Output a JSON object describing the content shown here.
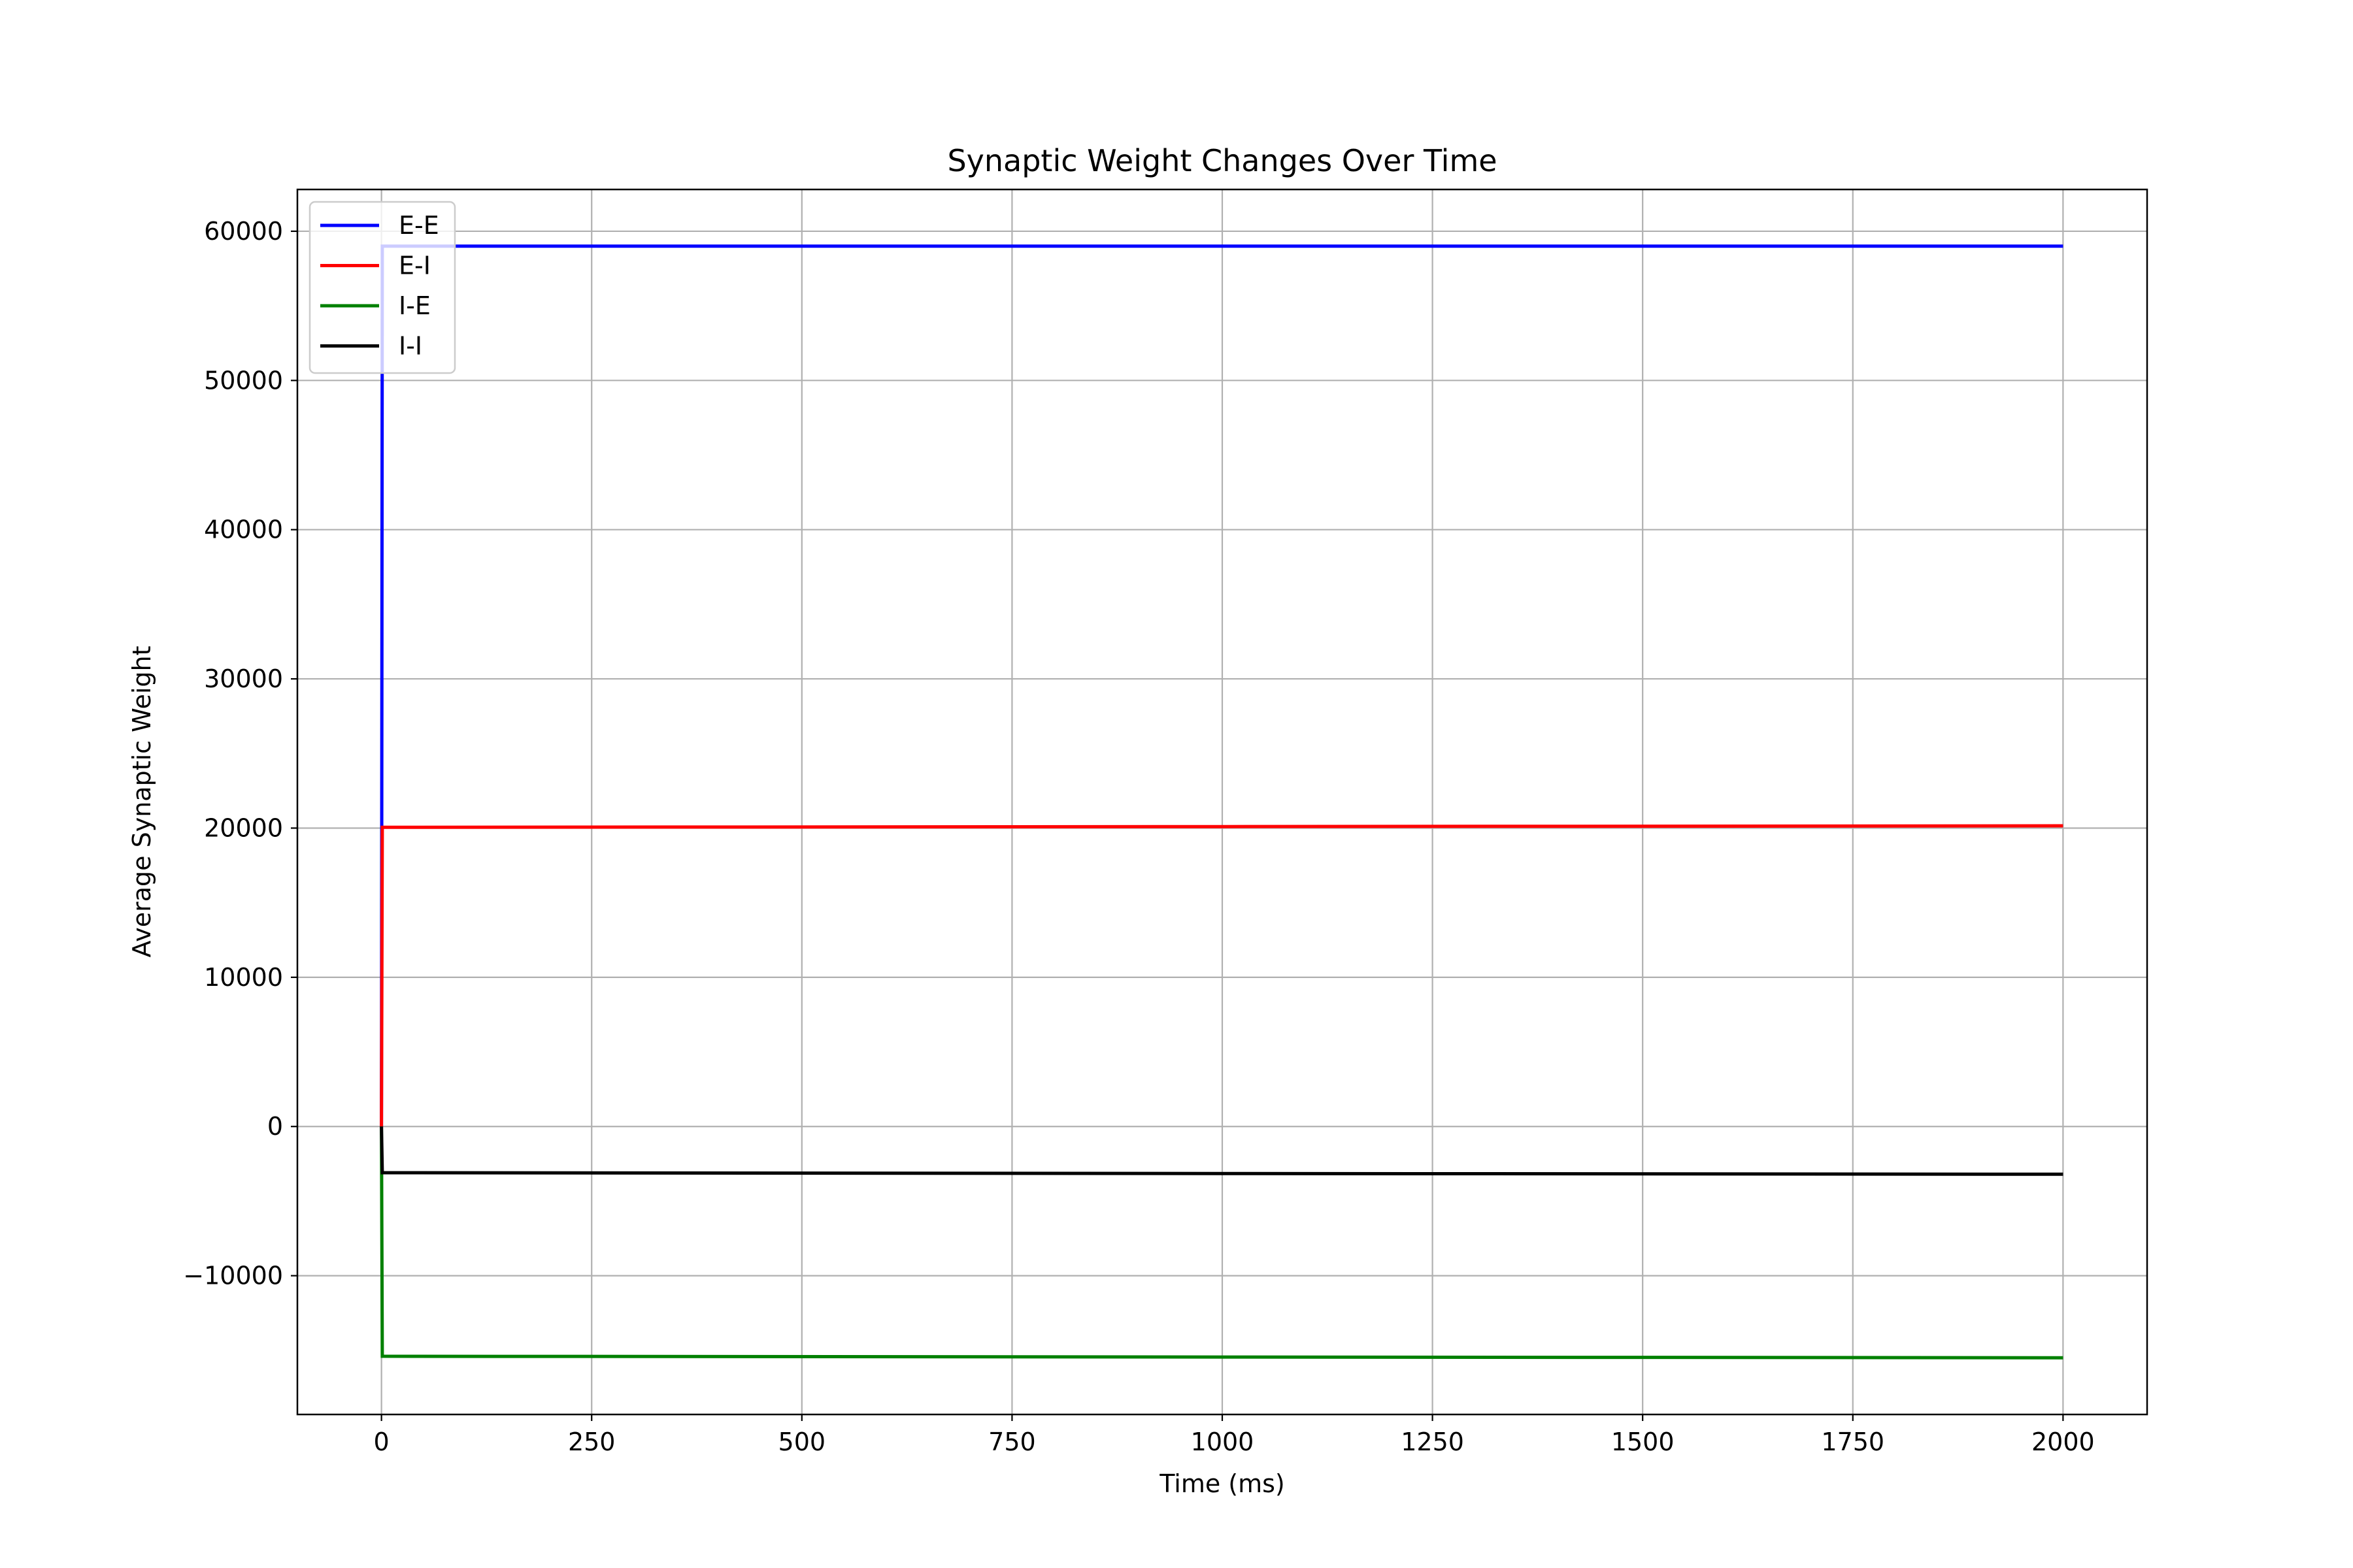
{
  "chart_data": {
    "type": "line",
    "title": "Synaptic Weight Changes Over Time",
    "xlabel": "Time (ms)",
    "ylabel": "Average Synaptic Weight",
    "xlim": [
      -100,
      2100
    ],
    "ylim": [
      -19300,
      62800
    ],
    "x_ticks": [
      0,
      250,
      500,
      750,
      1000,
      1250,
      1500,
      1750,
      2000
    ],
    "x_tick_labels": [
      "0",
      "250",
      "500",
      "750",
      "1000",
      "1250",
      "1500",
      "1750",
      "2000"
    ],
    "y_ticks": [
      -10000,
      0,
      10000,
      20000,
      30000,
      40000,
      50000,
      60000
    ],
    "y_tick_labels": [
      "−10000",
      "0",
      "10000",
      "20000",
      "30000",
      "40000",
      "50000",
      "60000"
    ],
    "grid": true,
    "legend_position": "top-left",
    "series": [
      {
        "name": "E-E",
        "color": "#0000ff",
        "x": [
          0,
          1,
          1000,
          2000
        ],
        "y": [
          0,
          59000,
          59000,
          59000
        ]
      },
      {
        "name": "E-I",
        "color": "#ff0000",
        "x": [
          0,
          1,
          1000,
          2000
        ],
        "y": [
          0,
          20050,
          20100,
          20150
        ]
      },
      {
        "name": "I-E",
        "color": "#008000",
        "x": [
          0,
          1,
          1000,
          2000
        ],
        "y": [
          0,
          -15400,
          -15450,
          -15500
        ]
      },
      {
        "name": "I-I",
        "color": "#000000",
        "x": [
          0,
          1,
          1000,
          2000
        ],
        "y": [
          0,
          -3100,
          -3150,
          -3200
        ]
      }
    ]
  }
}
